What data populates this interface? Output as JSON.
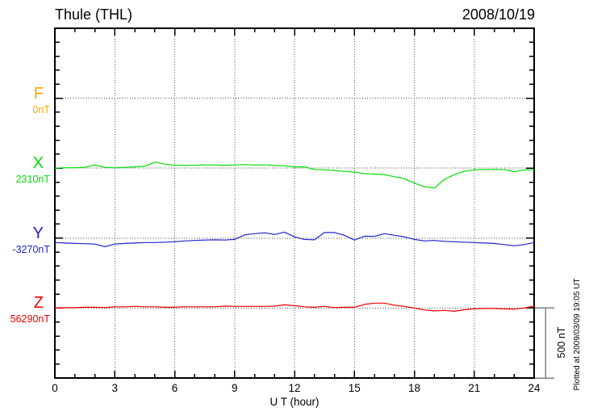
{
  "chart_data": {
    "type": "line",
    "title": "Thule (THL)",
    "date": "2008/10/19",
    "xlabel": "U T (hour)",
    "x_range": [
      0,
      24
    ],
    "x_ticks": [
      0,
      3,
      6,
      9,
      12,
      15,
      18,
      21,
      24
    ],
    "grid": "dotted vertical lines every 3 hours, dotted horizontal baseline per component",
    "legend_position": "left-axis component labels",
    "scale_bar": {
      "label": "500 nT",
      "value_nT": 500
    },
    "plotted_at": "Plotted at 2009/03/09 19:05 UT",
    "x_hours": [
      0,
      0.5,
      1,
      1.5,
      2,
      2.5,
      3,
      3.5,
      4,
      4.5,
      5,
      5.5,
      6,
      6.5,
      7,
      7.5,
      8,
      8.5,
      9,
      9.5,
      10,
      10.5,
      11,
      11.5,
      12,
      12.5,
      13,
      13.5,
      14,
      14.5,
      15,
      15.5,
      16,
      16.5,
      17,
      17.5,
      18,
      18.5,
      19,
      19.5,
      20,
      20.5,
      21,
      21.5,
      22,
      22.5,
      23,
      23.5,
      24
    ],
    "series": [
      {
        "name": "F",
        "baseline_label": "0nT",
        "baseline_value_nT": 0,
        "color": "#ffaa00",
        "offsets_nT": []
      },
      {
        "name": "X",
        "baseline_label": "2310nT",
        "baseline_value_nT": 2310,
        "color": "#00dd00",
        "offsets_nT": [
          0,
          3,
          3,
          6,
          23,
          6,
          3,
          6,
          9,
          14,
          43,
          29,
          20,
          20,
          20,
          23,
          23,
          20,
          23,
          26,
          23,
          23,
          20,
          17,
          9,
          9,
          -9,
          -12,
          -17,
          -23,
          -29,
          -38,
          -43,
          -46,
          -61,
          -75,
          -107,
          -133,
          -142,
          -81,
          -46,
          -23,
          -12,
          -9,
          -9,
          -9,
          -26,
          -12,
          -12
        ]
      },
      {
        "name": "Y",
        "baseline_label": "-3270nT",
        "baseline_value_nT": -3270,
        "color": "#2222cc",
        "offsets_nT": [
          -32,
          -35,
          -38,
          -40,
          -43,
          -61,
          -43,
          -38,
          -35,
          -32,
          -32,
          -29,
          -26,
          -20,
          -17,
          -14,
          -12,
          -14,
          -9,
          23,
          32,
          38,
          26,
          43,
          9,
          -9,
          -12,
          40,
          40,
          20,
          -14,
          14,
          12,
          32,
          20,
          9,
          -9,
          -20,
          -17,
          -23,
          -26,
          -29,
          -32,
          -35,
          -38,
          -46,
          -55,
          -46,
          -32
        ]
      },
      {
        "name": "Z",
        "baseline_label": "56290nT",
        "baseline_value_nT": 56290,
        "color": "#ee0000",
        "offsets_nT": [
          0,
          3,
          3,
          6,
          6,
          3,
          9,
          9,
          12,
          9,
          9,
          6,
          6,
          9,
          9,
          9,
          9,
          14,
          12,
          12,
          12,
          12,
          14,
          23,
          17,
          9,
          6,
          12,
          3,
          6,
          6,
          26,
          35,
          35,
          20,
          12,
          0,
          -14,
          -20,
          -17,
          -23,
          -12,
          -6,
          -3,
          -3,
          -6,
          -8,
          0,
          14
        ]
      }
    ]
  }
}
